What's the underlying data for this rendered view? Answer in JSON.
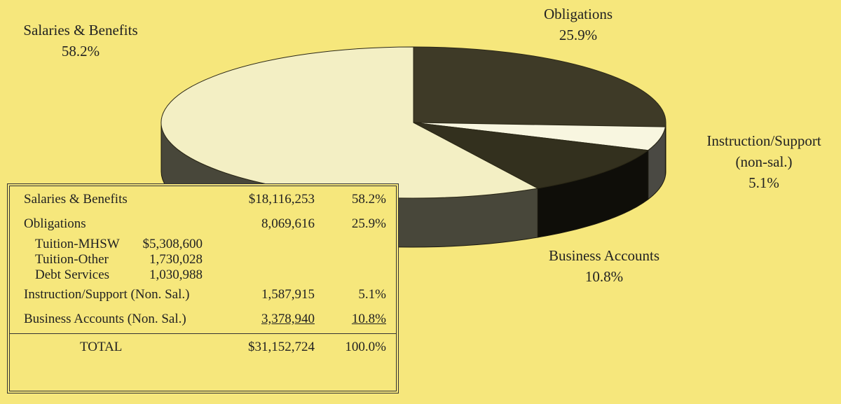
{
  "chart_data": {
    "type": "pie",
    "categories": [
      "Salaries & Benefits",
      "Obligations",
      "Instruction/Support\n(non-sal.)",
      "Business Accounts"
    ],
    "values": [
      58.2,
      25.9,
      5.1,
      10.8
    ],
    "value_labels": [
      "58.2%",
      "25.9%",
      "5.1%",
      "10.8%"
    ],
    "colors": [
      "#f3efc4",
      "#3e3a27",
      "#f8f6e0",
      "#33301e"
    ]
  },
  "table": {
    "rows": [
      {
        "label": "Salaries & Benefits",
        "amount": "$18,116,253",
        "percent": "58.2%"
      },
      {
        "label": "Obligations",
        "amount": "8,069,616",
        "percent": "25.9%",
        "items": [
          {
            "label": "Tuition-MHSW",
            "amount": "$5,308,600"
          },
          {
            "label": "Tuition-Other",
            "amount": "1,730,028"
          },
          {
            "label": "Debt Services",
            "amount": "1,030,988"
          }
        ]
      },
      {
        "label": "Instruction/Support (Non. Sal.)",
        "amount": "1,587,915",
        "percent": "5.1%"
      },
      {
        "label": "Business Accounts (Non. Sal.)",
        "amount": "3,378,940",
        "percent": "10.8%",
        "underline": true
      },
      {
        "label": "TOTAL",
        "amount": "$31,152,724",
        "percent": "100.0%",
        "total": true
      }
    ]
  }
}
